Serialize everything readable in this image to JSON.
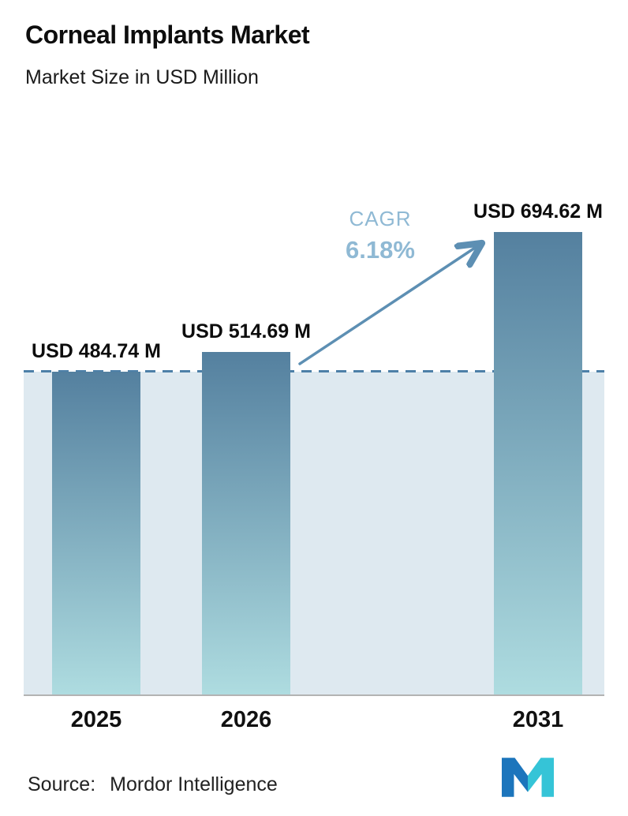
{
  "header": {
    "title": "Corneal Implants Market",
    "subtitle": "Market Size in USD Million"
  },
  "chart_data": {
    "type": "bar",
    "title": "Corneal Implants Market",
    "subtitle": "Market Size in USD Million",
    "categories": [
      "2025",
      "2026",
      "2031"
    ],
    "values": [
      484.74,
      514.69,
      694.62
    ],
    "value_labels": [
      "USD 484.74 M",
      "USD 514.69 M",
      "USD 694.62 M"
    ],
    "unit": "USD Million",
    "ylim": [
      0,
      700
    ],
    "cagr_label": "CAGR",
    "cagr_value": "6.18%",
    "baseline_value": 484.74,
    "legend": "none",
    "grid": "off",
    "colors": {
      "bar_gradient_top": "#54809f",
      "bar_gradient_bottom": "#aedce0",
      "plot_background": "#dee9f0",
      "dashed_line": "#4d80a8",
      "arrow": "#5d8fb3",
      "cagr_text": "#8fb9d4"
    }
  },
  "footer": {
    "source_label": "Source:",
    "source_name": "Mordor Intelligence",
    "logo_name": "mordor-intelligence-logo",
    "logo_colors": {
      "blue": "#1c75bc",
      "teal": "#35c4d7"
    }
  }
}
